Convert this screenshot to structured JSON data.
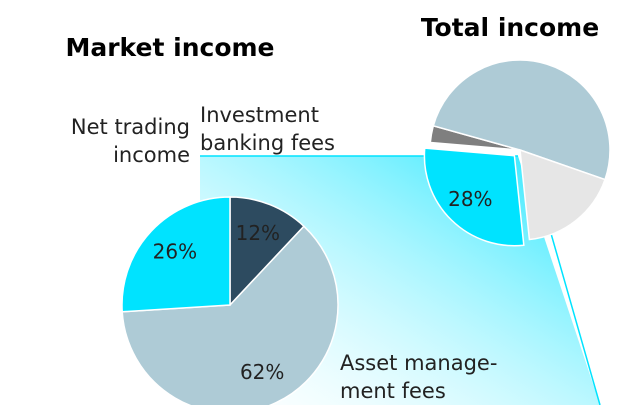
{
  "chart_data": [
    {
      "type": "pie",
      "title": "Market income",
      "categories": [
        [
          "Investment",
          "banking fees"
        ],
        [
          "Asset manage-",
          "ment fees"
        ],
        [
          "Net trading",
          "income"
        ]
      ],
      "values": [
        12,
        62,
        26
      ],
      "value_labels": [
        "12%",
        "62%",
        "26%"
      ],
      "colors": [
        "#2d4b60",
        "#aecbd6",
        "#00e3ff"
      ]
    },
    {
      "type": "pie",
      "title": "Total income",
      "values": [
        28,
        3,
        51,
        18
      ],
      "value_labels": [
        "28%",
        null,
        null,
        null
      ],
      "colors": [
        "#00e3ff",
        "#7f7f7f",
        "#aecbd6",
        "#e6e6e6"
      ]
    }
  ]
}
